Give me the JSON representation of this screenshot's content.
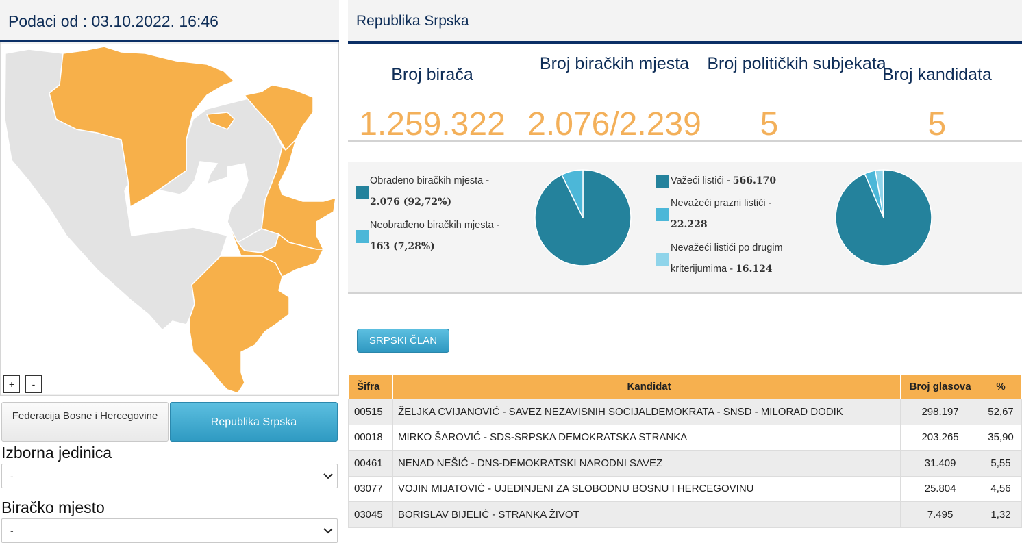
{
  "left": {
    "header": "Podaci od : 03.10.2022. 16:46",
    "zoom_in": "+",
    "zoom_out": "-",
    "entities": [
      {
        "label": "Federacija Bosne i Hercegovine"
      },
      {
        "label": "Republika Srpska"
      }
    ],
    "izborna_label": "Izborna jedinica",
    "izborna_value": "-",
    "biracko_label": "Biračko mjesto",
    "biracko_value": "-"
  },
  "right": {
    "header": "Republika Srpska",
    "stats": [
      {
        "label": "Broj birača",
        "value": "1.259.322"
      },
      {
        "label": "Broj biračkih mjesta",
        "value": "2.076/2.239"
      },
      {
        "label": "Broj političkih subjekata",
        "value": "5"
      },
      {
        "label": "Broj kandidata",
        "value": "5"
      }
    ],
    "pie1": {
      "items": [
        {
          "label": "Obrađeno biračkih mjesta - ",
          "value": "2.076 (92,72%)",
          "color": "#24829c",
          "fraction": 0.9272
        },
        {
          "label": "Neobrađeno biračkih mjesta - ",
          "value": "163 (7,28%)",
          "color": "#4cb7d8",
          "fraction": 0.0728
        }
      ]
    },
    "pie2": {
      "items": [
        {
          "label": "Važeći listići - ",
          "value": "566.170",
          "color": "#24829c",
          "fraction": 0.9354
        },
        {
          "label": "Nevažeći prazni listići - ",
          "value": "22.228",
          "color": "#4cb7d8",
          "fraction": 0.0367
        },
        {
          "label": "Nevažeći listići po drugim kriterijumima - ",
          "value": "16.124",
          "color": "#8fd4ea",
          "fraction": 0.0266
        }
      ]
    },
    "button": "SRPSKI ČLAN",
    "table": {
      "headers": [
        "Šifra",
        "Kandidat",
        "Broj glasova",
        "%"
      ],
      "rows": [
        {
          "code": "00515",
          "candidate": "ŽELJKA CVIJANOVIĆ - SAVEZ NEZAVISNIH SOCIJALDEMOKRATA - SNSD - MILORAD DODIK",
          "votes": "298.197",
          "pct": "52,67"
        },
        {
          "code": "00018",
          "candidate": "MIRKO ŠAROVIĆ - SDS-SRPSKA DEMOKRATSKA STRANKA",
          "votes": "203.265",
          "pct": "35,90"
        },
        {
          "code": "00461",
          "candidate": "NENAD NEŠIĆ - DNS-DEMOKRATSKI NARODNI SAVEZ",
          "votes": "31.409",
          "pct": "5,55"
        },
        {
          "code": "03077",
          "candidate": "VOJIN MIJATOVIĆ - UJEDINJENI ZA SLOBODNU BOSNU I HERCEGOVINU",
          "votes": "25.804",
          "pct": "4,56"
        },
        {
          "code": "03045",
          "candidate": "BORISLAV BIJELIĆ - STRANKA ŽIVOT",
          "votes": "7.495",
          "pct": "1,32"
        }
      ]
    }
  },
  "colors": {
    "navy": "#0b2f66",
    "orange": "#f3b05a",
    "teal": "#24829c",
    "blue": "#4cb7d8",
    "light_blue": "#8fd4ea",
    "map_gray": "#e3e3e3",
    "map_orange": "#f7b04a"
  }
}
